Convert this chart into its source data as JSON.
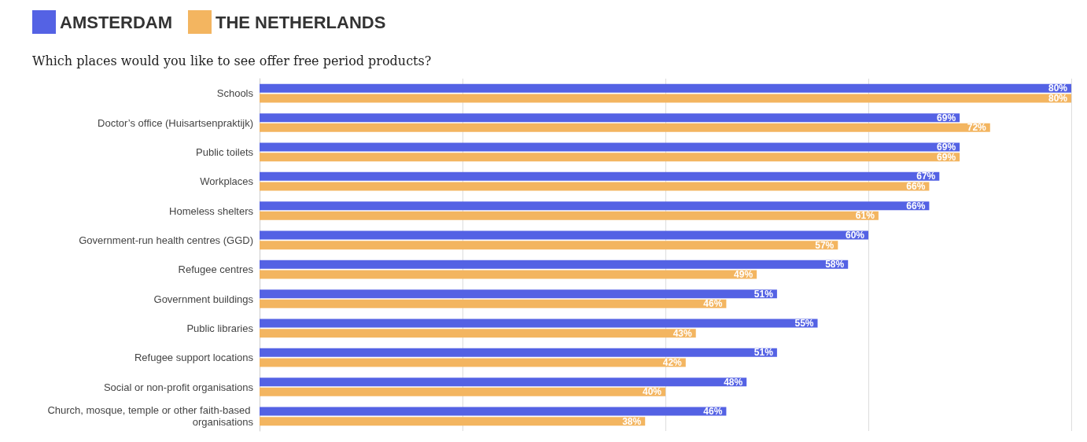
{
  "chart_data": {
    "type": "bar",
    "orientation": "horizontal",
    "title": "Which places would you like to see offer free period products?",
    "categories": [
      "Schools",
      "Doctor’s office (Huisartsenpraktijk)",
      "Public toilets",
      "Workplaces",
      "Homeless shelters",
      "Government-run health centres (GGD)",
      "Refugee centres",
      "Government buildings",
      "Public libraries",
      "Refugee support locations",
      "Social or non-profit organisations",
      "Church, mosque, temple or other faith-based organisations"
    ],
    "series": [
      {
        "name": "AMSTERDAM",
        "color": "#5462e4",
        "values": [
          80,
          69,
          69,
          67,
          66,
          60,
          58,
          51,
          55,
          51,
          48,
          46
        ],
        "value_labels": [
          "80%",
          "69%",
          "69%",
          "67%",
          "66%",
          "60%",
          "58%",
          "51%",
          "55%",
          "51%",
          "48%",
          "46%"
        ]
      },
      {
        "name": "THE NETHERLANDS",
        "color": "#f3b560",
        "values": [
          80,
          72,
          69,
          66,
          61,
          57,
          49,
          46,
          43,
          42,
          40,
          38
        ],
        "value_labels": [
          "80%",
          "72%",
          "69%",
          "66%",
          "61%",
          "57%",
          "49%",
          "46%",
          "43%",
          "42%",
          "40%",
          "38%"
        ]
      }
    ],
    "xlim": [
      0,
      80
    ],
    "xticks": [
      {
        "value": 0,
        "label": null
      },
      {
        "value": 20,
        "label": null
      },
      {
        "value": 40,
        "label": null
      },
      {
        "value": 60,
        "label": null
      },
      {
        "value": 80,
        "label": null
      }
    ],
    "grid": "x",
    "legend": "top left",
    "tick_labels": "y"
  }
}
